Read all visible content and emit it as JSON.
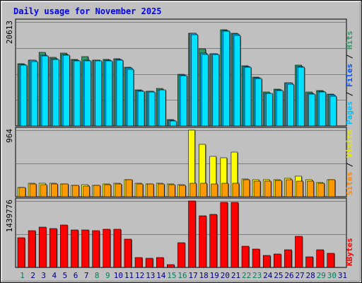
{
  "chart_data": {
    "type": "bar",
    "title": "Daily usage for November 2025",
    "categories": [
      "1",
      "2",
      "3",
      "4",
      "5",
      "6",
      "7",
      "8",
      "9",
      "10",
      "11",
      "12",
      "13",
      "14",
      "15",
      "16",
      "17",
      "18",
      "19",
      "20",
      "21",
      "22",
      "23",
      "24",
      "25",
      "26",
      "27",
      "28",
      "29",
      "30",
      "31"
    ],
    "weekend_days": [
      1,
      8,
      9,
      15,
      16,
      22,
      23,
      29,
      30
    ],
    "panels": [
      {
        "name": "top",
        "ymax": 20613,
        "ymax_label": "20613",
        "axis_label_parts": [
          "Pages",
          "Files",
          "Hits"
        ],
        "series": [
          {
            "name": "Hits",
            "color": "#339966",
            "values": [
              12300,
              13100,
              14600,
              13600,
              14500,
              13200,
              13800,
              13100,
              13200,
              13300,
              11700,
              7100,
              6900,
              7400,
              1200,
              10300,
              18400,
              15300,
              14300,
              19100,
              18300,
              11900,
              9700,
              6700,
              7300,
              8600,
              12100,
              6800,
              7000,
              6300,
              0
            ]
          },
          {
            "name": "Files",
            "color": "#00b4ff",
            "values": [
              12200,
              13000,
              14000,
              13300,
              14200,
              13100,
              13100,
              13000,
              13000,
              13200,
              11500,
              7000,
              6900,
              7200,
              1100,
              10100,
              18300,
              14400,
              14300,
              19000,
              18200,
              11800,
              9500,
              6500,
              7100,
              8500,
              11800,
              6500,
              6900,
              6200,
              0
            ]
          },
          {
            "name": "Pages",
            "color": "#00e0ff",
            "values": [
              12000,
              12800,
              13900,
              13200,
              14000,
              12900,
              12900,
              12900,
              12900,
              13000,
              11200,
              6900,
              6800,
              7100,
              1000,
              9900,
              18100,
              14200,
              14100,
              18800,
              18000,
              11600,
              9400,
              6400,
              7000,
              8300,
              11600,
              6300,
              6700,
              5900,
              0
            ]
          }
        ]
      },
      {
        "name": "middle",
        "ymax": 964,
        "ymax_label": "964",
        "axis_label_parts": [
          "Sites",
          "Visits"
        ],
        "series": [
          {
            "name": "Visits",
            "color": "#ffff00",
            "values": [
              136,
              190,
              196,
              196,
              186,
              166,
              170,
              166,
              180,
              190,
              245,
              190,
              186,
              196,
              180,
              170,
              964,
              764,
              586,
              566,
              651,
              260,
              250,
              241,
              250,
              264,
              294,
              241,
              206,
              241,
              0
            ]
          },
          {
            "name": "Sites",
            "color": "#ff9900",
            "values": [
              136,
              186,
              170,
              186,
              180,
              160,
              150,
              160,
              170,
              180,
              245,
              180,
              180,
              186,
              170,
              166,
              190,
              199,
              181,
              196,
              192,
              241,
              230,
              224,
              236,
              246,
              226,
              230,
              196,
              241,
              0
            ]
          }
        ]
      },
      {
        "name": "bottom",
        "ymax": 1439776,
        "ymax_label": "1439776",
        "axis_label_parts": [
          "KBytes"
        ],
        "series": [
          {
            "name": "KBytes",
            "color": "#ff0000",
            "values": [
              648000,
              798000,
              875000,
              843000,
              926000,
              807000,
              807000,
              792000,
              826000,
              826000,
              614000,
              220000,
              203000,
              220000,
              57000,
              536000,
              1439776,
              1113000,
              1152000,
              1407000,
              1412000,
              460000,
              400000,
              266000,
              286000,
              383000,
              676000,
              235000,
              383000,
              306000,
              0
            ]
          }
        ]
      }
    ]
  },
  "colors": {
    "frame": "#c0c0c0",
    "plot_bg": "#c0c0c0",
    "grid": "#808080",
    "title": "#0000ff",
    "day_label": "#000080",
    "weekend_day_label": "#00805c",
    "label_pages": "#00bfff",
    "label_files": "#0050ff",
    "label_hits": "#339966",
    "label_sites": "#ff8800",
    "label_visits": "#e8e800",
    "label_kbytes": "#ff0000",
    "bar_outline": "#000000",
    "bar_shadow": "#404040"
  }
}
